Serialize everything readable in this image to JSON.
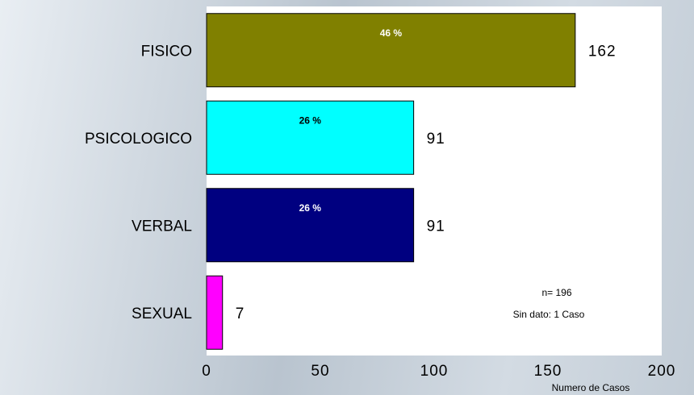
{
  "chart_data": {
    "type": "bar",
    "orientation": "horizontal",
    "categories": [
      "FISICO",
      "PSICOLOGICO",
      "VERBAL",
      "SEXUAL"
    ],
    "values": [
      162,
      91,
      91,
      7
    ],
    "percent_labels": [
      "46 %",
      "26 %",
      "26 %",
      ""
    ],
    "colors": [
      "#808000",
      "#00ffff",
      "#000080",
      "#ff00ff"
    ],
    "percent_label_colors": [
      "#ffffff",
      "#000000",
      "#ffffff",
      "#000000"
    ],
    "xlabel": "Numero de Casos",
    "xlim": [
      0,
      200
    ],
    "xticks": [
      0,
      50,
      100,
      150,
      200
    ],
    "grid": false,
    "annotations": [
      "n= 196",
      "Sin dato: 1 Caso"
    ]
  }
}
